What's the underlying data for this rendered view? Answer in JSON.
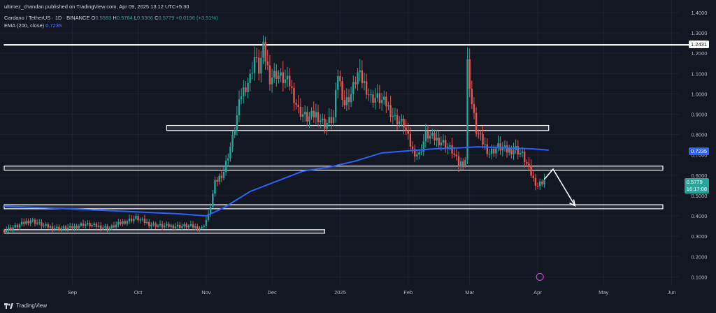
{
  "header": {
    "published": "ultimez_chandan published on TradingView.com, Apr 09, 2025 13:12 UTC+5:30",
    "symbol": "Cardano / TetherUS · 1D · BINANCE",
    "o_label": "O",
    "o": "0.5583",
    "h_label": "H",
    "h": "0.5784",
    "l_label": "L",
    "l": "0.5366",
    "c_label": "C",
    "c": "0.5779",
    "change": "+0.0196 (+3.51%)",
    "ema_label": "EMA (200, close)",
    "ema_value": "0.7235"
  },
  "footer": {
    "brand": "TradingView"
  },
  "tags": {
    "level_1": "1.2431",
    "ema": "0.7235",
    "price": "0.5779",
    "countdown": "16:17:08"
  },
  "colors": {
    "background": "#131722",
    "up": "#26a69a",
    "down": "#ef5350",
    "ema": "#2962ff",
    "zone": "#ffffff",
    "grid": "#1e222d"
  },
  "chart_data": {
    "type": "candlestick",
    "ylim": [
      0.06,
      1.4
    ],
    "yticks": [
      "1.4000",
      "1.3000",
      "1.2000",
      "1.1000",
      "1.0000",
      "0.9000",
      "0.8000",
      "0.7000",
      "0.6000",
      "0.5000",
      "0.4000",
      "0.3000",
      "0.2000",
      "0.1000"
    ],
    "ytick_values": [
      1.4,
      1.3,
      1.2,
      1.1,
      1.0,
      0.9,
      0.8,
      0.7,
      0.6,
      0.5,
      0.4,
      0.3,
      0.2,
      0.1
    ],
    "xlabels": [
      "Sep",
      "Oct",
      "Nov",
      "Dec",
      "2025",
      "Feb",
      "Mar",
      "Apr",
      "May",
      "Jun"
    ],
    "xlabel_days": [
      31,
      61,
      92,
      122,
      153,
      184,
      212,
      243,
      273,
      304
    ],
    "candles_close": [
      [
        0,
        0.33
      ],
      [
        6,
        0.35
      ],
      [
        12,
        0.38
      ],
      [
        18,
        0.35
      ],
      [
        24,
        0.34
      ],
      [
        30,
        0.34
      ],
      [
        36,
        0.36
      ],
      [
        42,
        0.35
      ],
      [
        48,
        0.34
      ],
      [
        54,
        0.37
      ],
      [
        60,
        0.39
      ],
      [
        66,
        0.36
      ],
      [
        72,
        0.35
      ],
      [
        78,
        0.35
      ],
      [
        84,
        0.35
      ],
      [
        90,
        0.34
      ],
      [
        93,
        0.4
      ],
      [
        96,
        0.56
      ],
      [
        100,
        0.62
      ],
      [
        104,
        0.78
      ],
      [
        108,
        1.0
      ],
      [
        112,
        1.08
      ],
      [
        114,
        1.18
      ],
      [
        116,
        1.12
      ],
      [
        118,
        1.22
      ],
      [
        121,
        1.08
      ],
      [
        124,
        1.1
      ],
      [
        126,
        1.08
      ],
      [
        130,
        1.05
      ],
      [
        134,
        0.92
      ],
      [
        138,
        0.88
      ],
      [
        142,
        0.9
      ],
      [
        146,
        0.85
      ],
      [
        150,
        0.88
      ],
      [
        152,
        1.1
      ],
      [
        155,
        0.95
      ],
      [
        158,
        1.0
      ],
      [
        161,
        1.1
      ],
      [
        164,
        1.05
      ],
      [
        167,
        0.98
      ],
      [
        170,
        0.98
      ],
      [
        174,
        0.95
      ],
      [
        178,
        0.88
      ],
      [
        182,
        0.85
      ],
      [
        184,
        0.78
      ],
      [
        186,
        0.72
      ],
      [
        189,
        0.7
      ],
      [
        192,
        0.8
      ],
      [
        196,
        0.78
      ],
      [
        200,
        0.76
      ],
      [
        204,
        0.72
      ],
      [
        207,
        0.65
      ],
      [
        210,
        0.68
      ],
      [
        211,
        1.15
      ],
      [
        213,
        0.95
      ],
      [
        215,
        0.82
      ],
      [
        218,
        0.76
      ],
      [
        221,
        0.71
      ],
      [
        225,
        0.74
      ],
      [
        229,
        0.72
      ],
      [
        233,
        0.73
      ],
      [
        236,
        0.7
      ],
      [
        239,
        0.63
      ],
      [
        241,
        0.58
      ],
      [
        243,
        0.55
      ],
      [
        246,
        0.5779
      ]
    ],
    "ema_200": [
      [
        0,
        0.448
      ],
      [
        40,
        0.43
      ],
      [
        80,
        0.41
      ],
      [
        92,
        0.4
      ],
      [
        100,
        0.44
      ],
      [
        112,
        0.52
      ],
      [
        124,
        0.57
      ],
      [
        136,
        0.62
      ],
      [
        148,
        0.64
      ],
      [
        160,
        0.67
      ],
      [
        172,
        0.71
      ],
      [
        184,
        0.72
      ],
      [
        196,
        0.73
      ],
      [
        208,
        0.735
      ],
      [
        216,
        0.74
      ],
      [
        228,
        0.735
      ],
      [
        240,
        0.73
      ],
      [
        248,
        0.7235
      ]
    ],
    "zones": [
      {
        "y_low": 1.243,
        "y_high": 1.243,
        "x_start": 0,
        "x_end": 316
      },
      {
        "y_low": 0.82,
        "y_high": 0.845,
        "x_start": 74,
        "x_end": 248
      },
      {
        "y_low": 0.625,
        "y_high": 0.645,
        "x_start": 0,
        "x_end": 300
      },
      {
        "y_low": 0.435,
        "y_high": 0.455,
        "x_start": 0,
        "x_end": 300
      },
      {
        "y_low": 0.315,
        "y_high": 0.332,
        "x_start": 0,
        "x_end": 146
      }
    ],
    "projection": [
      [
        246,
        0.58
      ],
      [
        250,
        0.63
      ],
      [
        260,
        0.45
      ],
      [
        262,
        0.46
      ]
    ]
  }
}
